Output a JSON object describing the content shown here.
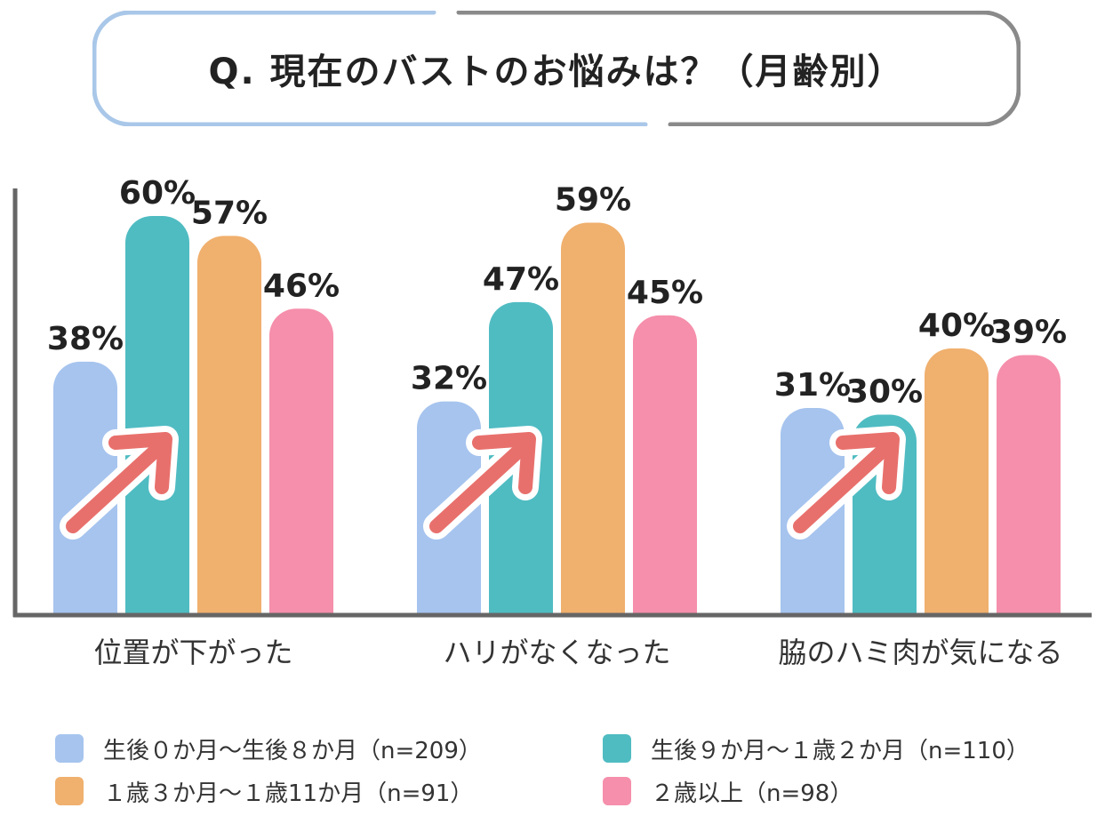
{
  "title": "Q. 現在のバストのお悩みは？（月齢別）",
  "colors": {
    "title_border_left": "#a9c7e8",
    "title_border_right": "#8a8a8a",
    "axis": "#666666",
    "arrow_fill": "#e8706c",
    "arrow_outline": "#ffffff"
  },
  "chart_data": {
    "type": "bar",
    "title": "Q. 現在のバストのお悩みは？（月齢別）",
    "xlabel": "",
    "ylabel": "",
    "ylim": [
      0,
      65
    ],
    "grid": false,
    "value_suffix": "%",
    "legend_position": "bottom",
    "categories": [
      "位置が下がった",
      "ハリがなくなった",
      "脇のハミ肉が気になる"
    ],
    "series": [
      {
        "name": "生後０か月〜生後８か月（n=209）",
        "color": "#a6c4ee",
        "values": [
          38,
          32,
          31
        ]
      },
      {
        "name": "生後９か月〜１歳２か月（n=110）",
        "color": "#4fbcc2",
        "values": [
          60,
          47,
          30
        ]
      },
      {
        "name": "１歳３か月〜１歳11か月（n=91）",
        "color": "#f0b06e",
        "values": [
          57,
          59,
          40
        ]
      },
      {
        "name": "２歳以上（n=98）",
        "color": "#f58fab",
        "values": [
          46,
          45,
          39
        ]
      }
    ],
    "annotations": [
      "upward-arrow",
      "upward-arrow",
      "upward-arrow"
    ]
  }
}
